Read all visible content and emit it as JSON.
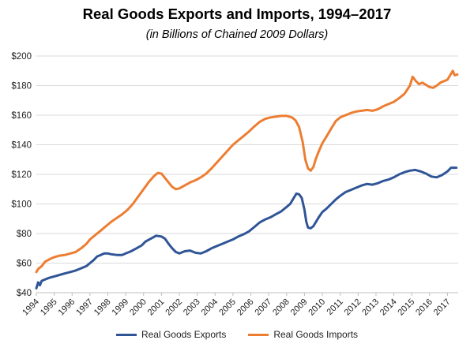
{
  "chart_data": {
    "type": "line",
    "title": "Real Goods Exports and Imports, 1994–2017",
    "subtitle": "(in Billions of Chained 2009 Dollars)",
    "xlabel": "",
    "ylabel": "",
    "xlim": [
      1994.0,
      2017.6
    ],
    "ylim": [
      40,
      200
    ],
    "yticks": [
      40,
      60,
      80,
      100,
      120,
      140,
      160,
      180,
      200
    ],
    "ytick_labels": [
      "$40",
      "$60",
      "$80",
      "$100",
      "$120",
      "$140",
      "$160",
      "$180",
      "$200"
    ],
    "xticks": [
      1994,
      1995,
      1996,
      1997,
      1998,
      1999,
      2000,
      2001,
      2002,
      2003,
      2004,
      2005,
      2006,
      2007,
      2008,
      2009,
      2010,
      2011,
      2012,
      2013,
      2014,
      2015,
      2016,
      2017
    ],
    "xtick_labels": [
      "1994",
      "1995",
      "1996",
      "1997",
      "1998",
      "1999",
      "2000",
      "2001",
      "2002",
      "2003",
      "2004",
      "2005",
      "2006",
      "2007",
      "2008",
      "2009",
      "2010",
      "2011",
      "2012",
      "2013",
      "2014",
      "2015",
      "2016",
      "2017"
    ],
    "grid": true,
    "legend_position": "bottom",
    "series": [
      {
        "name": "Real Goods Exports",
        "color": "#2F5597",
        "points": [
          [
            1994.0,
            43
          ],
          [
            1994.1,
            47
          ],
          [
            1994.2,
            45
          ],
          [
            1994.3,
            48
          ],
          [
            1994.5,
            49
          ],
          [
            1994.7,
            50
          ],
          [
            1995.0,
            51
          ],
          [
            1995.3,
            52
          ],
          [
            1995.6,
            53
          ],
          [
            1995.9,
            54
          ],
          [
            1996.2,
            55
          ],
          [
            1996.5,
            56.5
          ],
          [
            1996.8,
            58
          ],
          [
            1997.0,
            60
          ],
          [
            1997.2,
            62
          ],
          [
            1997.4,
            64.5
          ],
          [
            1997.6,
            65.5
          ],
          [
            1997.8,
            66.5
          ],
          [
            1998.0,
            66.5
          ],
          [
            1998.2,
            66
          ],
          [
            1998.5,
            65.5
          ],
          [
            1998.8,
            65.5
          ],
          [
            1999.0,
            66.5
          ],
          [
            1999.3,
            68
          ],
          [
            1999.6,
            70
          ],
          [
            1999.9,
            72
          ],
          [
            2000.1,
            74.5
          ],
          [
            2000.4,
            76.5
          ],
          [
            2000.7,
            78.5
          ],
          [
            2001.0,
            78
          ],
          [
            2001.2,
            76.5
          ],
          [
            2001.4,
            73
          ],
          [
            2001.6,
            70
          ],
          [
            2001.8,
            67.5
          ],
          [
            2002.0,
            66.5
          ],
          [
            2002.3,
            68
          ],
          [
            2002.6,
            68.5
          ],
          [
            2002.9,
            67
          ],
          [
            2003.2,
            66.5
          ],
          [
            2003.5,
            68
          ],
          [
            2003.8,
            70
          ],
          [
            2004.1,
            71.5
          ],
          [
            2004.4,
            73
          ],
          [
            2004.7,
            74.5
          ],
          [
            2005.0,
            76
          ],
          [
            2005.3,
            78
          ],
          [
            2005.6,
            79.5
          ],
          [
            2005.9,
            81.5
          ],
          [
            2006.2,
            84.5
          ],
          [
            2006.5,
            87.5
          ],
          [
            2006.8,
            89.5
          ],
          [
            2007.1,
            91
          ],
          [
            2007.4,
            93
          ],
          [
            2007.7,
            95
          ],
          [
            2008.0,
            98
          ],
          [
            2008.2,
            100
          ],
          [
            2008.4,
            104
          ],
          [
            2008.55,
            107
          ],
          [
            2008.7,
            106.5
          ],
          [
            2008.85,
            104
          ],
          [
            2009.0,
            96
          ],
          [
            2009.1,
            88
          ],
          [
            2009.2,
            84
          ],
          [
            2009.35,
            83.5
          ],
          [
            2009.5,
            85
          ],
          [
            2009.65,
            88
          ],
          [
            2009.8,
            91
          ],
          [
            2010.0,
            94.5
          ],
          [
            2010.25,
            97
          ],
          [
            2010.5,
            100
          ],
          [
            2010.75,
            103
          ],
          [
            2011.0,
            105.5
          ],
          [
            2011.3,
            108
          ],
          [
            2011.6,
            109.5
          ],
          [
            2011.9,
            111
          ],
          [
            2012.2,
            112.5
          ],
          [
            2012.5,
            113.5
          ],
          [
            2012.8,
            113
          ],
          [
            2013.1,
            114
          ],
          [
            2013.4,
            115.5
          ],
          [
            2013.7,
            116.5
          ],
          [
            2014.0,
            118
          ],
          [
            2014.3,
            120
          ],
          [
            2014.6,
            121.5
          ],
          [
            2014.9,
            122.5
          ],
          [
            2015.2,
            123
          ],
          [
            2015.5,
            122
          ],
          [
            2015.8,
            120.5
          ],
          [
            2016.1,
            118.5
          ],
          [
            2016.4,
            118
          ],
          [
            2016.7,
            119.5
          ],
          [
            2017.0,
            122
          ],
          [
            2017.2,
            124.5
          ],
          [
            2017.4,
            124.5
          ],
          [
            2017.5,
            124.5
          ]
        ]
      },
      {
        "name": "Real Goods Imports",
        "color": "#ED7D31",
        "points": [
          [
            1994.0,
            54
          ],
          [
            1994.1,
            56
          ],
          [
            1994.3,
            58
          ],
          [
            1994.5,
            61
          ],
          [
            1994.8,
            63
          ],
          [
            1995.0,
            64
          ],
          [
            1995.3,
            65
          ],
          [
            1995.6,
            65.5
          ],
          [
            1995.9,
            66.5
          ],
          [
            1996.2,
            67.5
          ],
          [
            1996.5,
            70
          ],
          [
            1996.8,
            73
          ],
          [
            1997.0,
            76
          ],
          [
            1997.3,
            79
          ],
          [
            1997.6,
            82
          ],
          [
            1997.9,
            85
          ],
          [
            1998.2,
            88
          ],
          [
            1998.5,
            90.5
          ],
          [
            1998.8,
            93
          ],
          [
            1999.1,
            96
          ],
          [
            1999.4,
            100
          ],
          [
            1999.7,
            105
          ],
          [
            2000.0,
            110
          ],
          [
            2000.3,
            115
          ],
          [
            2000.6,
            119
          ],
          [
            2000.8,
            121
          ],
          [
            2001.0,
            120.5
          ],
          [
            2001.2,
            117.5
          ],
          [
            2001.4,
            114.5
          ],
          [
            2001.6,
            111.5
          ],
          [
            2001.8,
            110
          ],
          [
            2002.0,
            110.5
          ],
          [
            2002.3,
            112.5
          ],
          [
            2002.6,
            114.5
          ],
          [
            2002.9,
            116
          ],
          [
            2003.2,
            118
          ],
          [
            2003.5,
            120.5
          ],
          [
            2003.8,
            124
          ],
          [
            2004.1,
            128
          ],
          [
            2004.4,
            132
          ],
          [
            2004.7,
            136
          ],
          [
            2005.0,
            140
          ],
          [
            2005.3,
            143
          ],
          [
            2005.6,
            146
          ],
          [
            2005.9,
            149
          ],
          [
            2006.2,
            152.5
          ],
          [
            2006.5,
            155.5
          ],
          [
            2006.8,
            157.5
          ],
          [
            2007.1,
            158.5
          ],
          [
            2007.4,
            159
          ],
          [
            2007.7,
            159.5
          ],
          [
            2008.0,
            159.5
          ],
          [
            2008.3,
            158.5
          ],
          [
            2008.5,
            156.5
          ],
          [
            2008.7,
            152
          ],
          [
            2008.9,
            142
          ],
          [
            2009.05,
            130
          ],
          [
            2009.2,
            124
          ],
          [
            2009.35,
            122.5
          ],
          [
            2009.5,
            125
          ],
          [
            2009.65,
            131
          ],
          [
            2009.8,
            135.5
          ],
          [
            2010.0,
            141
          ],
          [
            2010.25,
            146
          ],
          [
            2010.5,
            151
          ],
          [
            2010.75,
            156
          ],
          [
            2011.0,
            158.5
          ],
          [
            2011.3,
            160
          ],
          [
            2011.6,
            161.5
          ],
          [
            2011.9,
            162.5
          ],
          [
            2012.2,
            163
          ],
          [
            2012.5,
            163.5
          ],
          [
            2012.8,
            163
          ],
          [
            2013.1,
            164
          ],
          [
            2013.4,
            166
          ],
          [
            2013.7,
            167.5
          ],
          [
            2014.0,
            169
          ],
          [
            2014.3,
            171.5
          ],
          [
            2014.6,
            174.5
          ],
          [
            2014.9,
            180
          ],
          [
            2015.05,
            186
          ],
          [
            2015.2,
            183.5
          ],
          [
            2015.4,
            181
          ],
          [
            2015.6,
            182
          ],
          [
            2015.8,
            180.5
          ],
          [
            2016.0,
            179
          ],
          [
            2016.2,
            178.5
          ],
          [
            2016.4,
            180
          ],
          [
            2016.6,
            182
          ],
          [
            2016.8,
            183
          ],
          [
            2017.0,
            184
          ],
          [
            2017.15,
            187
          ],
          [
            2017.3,
            190
          ],
          [
            2017.4,
            187
          ],
          [
            2017.55,
            187.5
          ]
        ]
      }
    ]
  }
}
